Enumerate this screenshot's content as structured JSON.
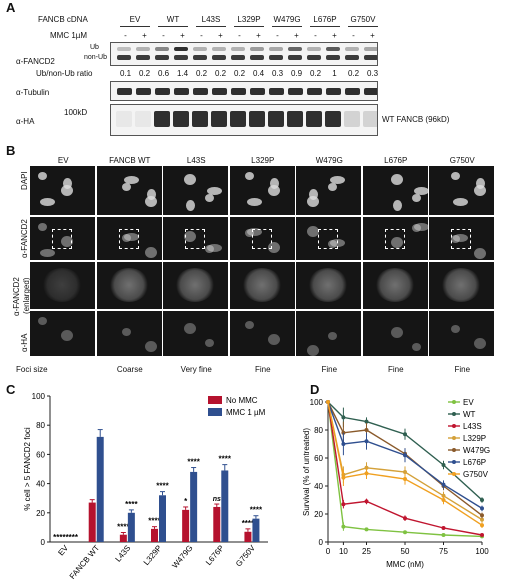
{
  "panelA": {
    "letter": "A",
    "cdna_label": "FANCB cDNA",
    "mmc_label": "MMC 1µM",
    "samples": [
      "EV",
      "WT",
      "L43S",
      "L329P",
      "W479G",
      "L676P",
      "G750V"
    ],
    "mmc_signs": [
      "-",
      "+",
      "-",
      "+",
      "-",
      "+",
      "-",
      "+",
      "-",
      "+",
      "-",
      "+",
      "-",
      "+"
    ],
    "fancd2_label": "α-FANCD2",
    "ub_label": "Ub",
    "nonub_label": "non-Ub",
    "ratio_label": "Ub/non-Ub ratio",
    "ratios": [
      "0.1",
      "0.2",
      "0.6",
      "1.4",
      "0.2",
      "0.2",
      "0.2",
      "0.4",
      "0.3",
      "0.9",
      "0.2",
      "1",
      "0.2",
      "0.3"
    ],
    "tubulin_label": "α-Tubulin",
    "ha_label": "α-HA",
    "kd_marker": "100kD",
    "wt_band_label": "WT FANCB (96kD)"
  },
  "panelB": {
    "letter": "B",
    "columns": [
      "EV",
      "FANCB WT",
      "L43S",
      "L329P",
      "W479G",
      "L676P",
      "G750V"
    ],
    "row_dapi": "DAPI",
    "row_fancd2": "α-FANCD2",
    "row_enlarged_1": "α-FANCD2",
    "row_enlarged_2": "(enlarged)",
    "row_ha": "α-HA",
    "foci_label": "Foci size",
    "foci_sizes": [
      "",
      "Coarse",
      "Very fine",
      "Fine",
      "Fine",
      "Fine",
      "Fine"
    ]
  },
  "panelC": {
    "letter": "C",
    "chart_data": {
      "type": "bar",
      "ylabel": "% cell > 5 FANCD2 foci",
      "ylim": [
        0,
        100
      ],
      "yticks": [
        "0",
        "20",
        "40",
        "60",
        "80",
        "100"
      ],
      "categories": [
        "EV",
        "FANCB WT",
        "L43S",
        "L329P",
        "W479G",
        "L676P",
        "G750V"
      ],
      "series": [
        {
          "name": "No MMC",
          "color": "#b5122e",
          "values": [
            0,
            27,
            5,
            9,
            22,
            24,
            7
          ],
          "errors": [
            0,
            2,
            1.5,
            1.5,
            2,
            2,
            2
          ]
        },
        {
          "name": "MMC 1 µM",
          "color": "#2f4f8f",
          "values": [
            0,
            72,
            20,
            32,
            48,
            49,
            16
          ],
          "errors": [
            0,
            5,
            2,
            2.5,
            3,
            4,
            2
          ]
        }
      ],
      "sig_no_mmc": [
        "",
        "",
        "****",
        "****",
        "*",
        "ns",
        "****"
      ],
      "sig_mmc": [
        "",
        "",
        "****",
        "****",
        "****",
        "****",
        "****"
      ],
      "ev_marker": "********",
      "legend_position": "top-right"
    }
  },
  "panelD": {
    "letter": "D",
    "chart_data": {
      "type": "line",
      "xlabel": "MMC (nM)",
      "ylabel": "Survival (% of untreated)",
      "x": [
        0,
        10,
        25,
        50,
        75,
        100
      ],
      "xticks": [
        "0",
        "10",
        "25",
        "50",
        "75",
        "100"
      ],
      "yticks": [
        "0",
        "20",
        "40",
        "60",
        "80",
        "100"
      ],
      "ylim": [
        0,
        100
      ],
      "legend_position": "right",
      "series": [
        {
          "name": "EV",
          "color": "#7fc241",
          "values": [
            100,
            11,
            9,
            7,
            5,
            4
          ],
          "errors": [
            0,
            3,
            1,
            1,
            1,
            1
          ]
        },
        {
          "name": "WT",
          "color": "#2f5f50",
          "values": [
            100,
            89,
            86,
            77,
            55,
            30
          ],
          "errors": [
            0,
            7,
            3,
            4,
            3,
            2
          ]
        },
        {
          "name": "L43S",
          "color": "#c0152f",
          "values": [
            100,
            27,
            29,
            17,
            10,
            5
          ],
          "errors": [
            0,
            3,
            2,
            2,
            1,
            1
          ]
        },
        {
          "name": "L329P",
          "color": "#d4a13a",
          "values": [
            100,
            48,
            53,
            50,
            33,
            16
          ],
          "errors": [
            0,
            6,
            4,
            4,
            3,
            2
          ]
        },
        {
          "name": "W479G",
          "color": "#8a5a2b",
          "values": [
            100,
            78,
            80,
            63,
            40,
            19
          ],
          "errors": [
            0,
            8,
            5,
            4,
            3,
            2
          ]
        },
        {
          "name": "L676P",
          "color": "#2f4f8f",
          "values": [
            100,
            70,
            72,
            62,
            41,
            24
          ],
          "errors": [
            0,
            8,
            6,
            5,
            3,
            2
          ]
        },
        {
          "name": "G750V",
          "color": "#f0a020",
          "values": [
            100,
            46,
            49,
            45,
            30,
            12
          ],
          "errors": [
            0,
            6,
            4,
            4,
            3,
            2
          ]
        }
      ]
    }
  }
}
